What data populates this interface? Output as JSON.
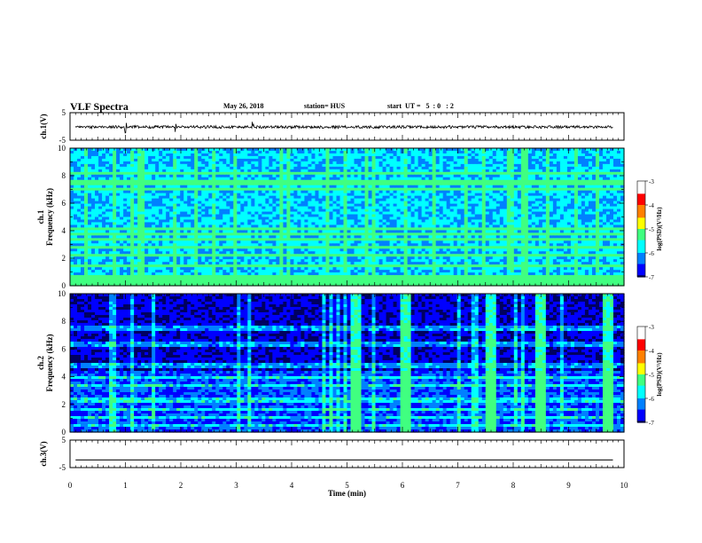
{
  "header": {
    "title": "VLF Spectra",
    "date": "May 26, 2018",
    "station": "station= HUS",
    "start": "start  UT =   5  : 0   : 2"
  },
  "colors": {
    "background": "#ffffff",
    "ink": "#000000",
    "spectrogram_floor": "#000066",
    "spectrogram_base": "#1a3cff",
    "spectrogram_bright": "#3cff8c",
    "colormap": [
      "#000060",
      "#0000ff",
      "#0080ff",
      "#00ffff",
      "#40ff80",
      "#ffff00",
      "#ff8000",
      "#ff0000",
      "#ffffff"
    ]
  },
  "chart_data": [
    {
      "type": "line",
      "panel": "ch1-waveform",
      "ylabel": "ch.1(V)",
      "ylim": [
        -5,
        5
      ],
      "yticks": [
        "5",
        "-5"
      ],
      "xlim": [
        0,
        10
      ],
      "baseline": -0.2,
      "description_series": "noise trace near zero with spikes near x=1.0, 1.9, 3.3"
    },
    {
      "type": "heatmap",
      "panel": "ch1-spectrogram",
      "ylabel_line1": "ch.1",
      "ylabel_line2": "Frequency  (kHz)",
      "ylim": [
        0,
        10
      ],
      "yticks": [
        "0",
        "2",
        "4",
        "6",
        "8",
        "10"
      ],
      "xlim": [
        0,
        10
      ],
      "bright_bands_khz": [
        0.2,
        0.35,
        0.6,
        1.4,
        2.2,
        2.8,
        3.3,
        3.7,
        4.1,
        7.0,
        7.5,
        8.2
      ],
      "colorbar": {
        "ticks": [
          "-3",
          "-4",
          "-5",
          "-6",
          "-7"
        ],
        "label": "log(PSD)(V²/Hz)"
      }
    },
    {
      "type": "heatmap",
      "panel": "ch2-spectrogram",
      "ylabel_line1": "ch.2",
      "ylabel_line2": "Frequency  (kHz)",
      "ylim": [
        0,
        10
      ],
      "yticks": [
        "0",
        "2",
        "4",
        "6",
        "8",
        "10"
      ],
      "xlim": [
        0,
        10
      ],
      "bright_bands_khz": [
        0.5,
        1.0,
        1.7,
        2.3,
        3.3,
        4.0,
        4.8,
        6.2,
        6.5,
        7.5
      ],
      "bright_columns_min": [
        5.15,
        6.05,
        7.6,
        8.5,
        9.7
      ],
      "colorbar": {
        "ticks": [
          "-3",
          "-4",
          "-5",
          "-6",
          "-7"
        ],
        "label": "log(PSD)(V²/Hz)"
      }
    },
    {
      "type": "line",
      "panel": "ch3-waveform",
      "ylabel": "ch.3(V)",
      "ylim": [
        -5,
        5
      ],
      "yticks": [
        "5",
        "-5"
      ],
      "xlim": [
        0,
        10
      ],
      "baseline": -2.2,
      "xlabel": "Time  (min)",
      "xticks": [
        "0",
        "1",
        "2",
        "3",
        "4",
        "5",
        "6",
        "7",
        "8",
        "9",
        "10"
      ]
    }
  ]
}
